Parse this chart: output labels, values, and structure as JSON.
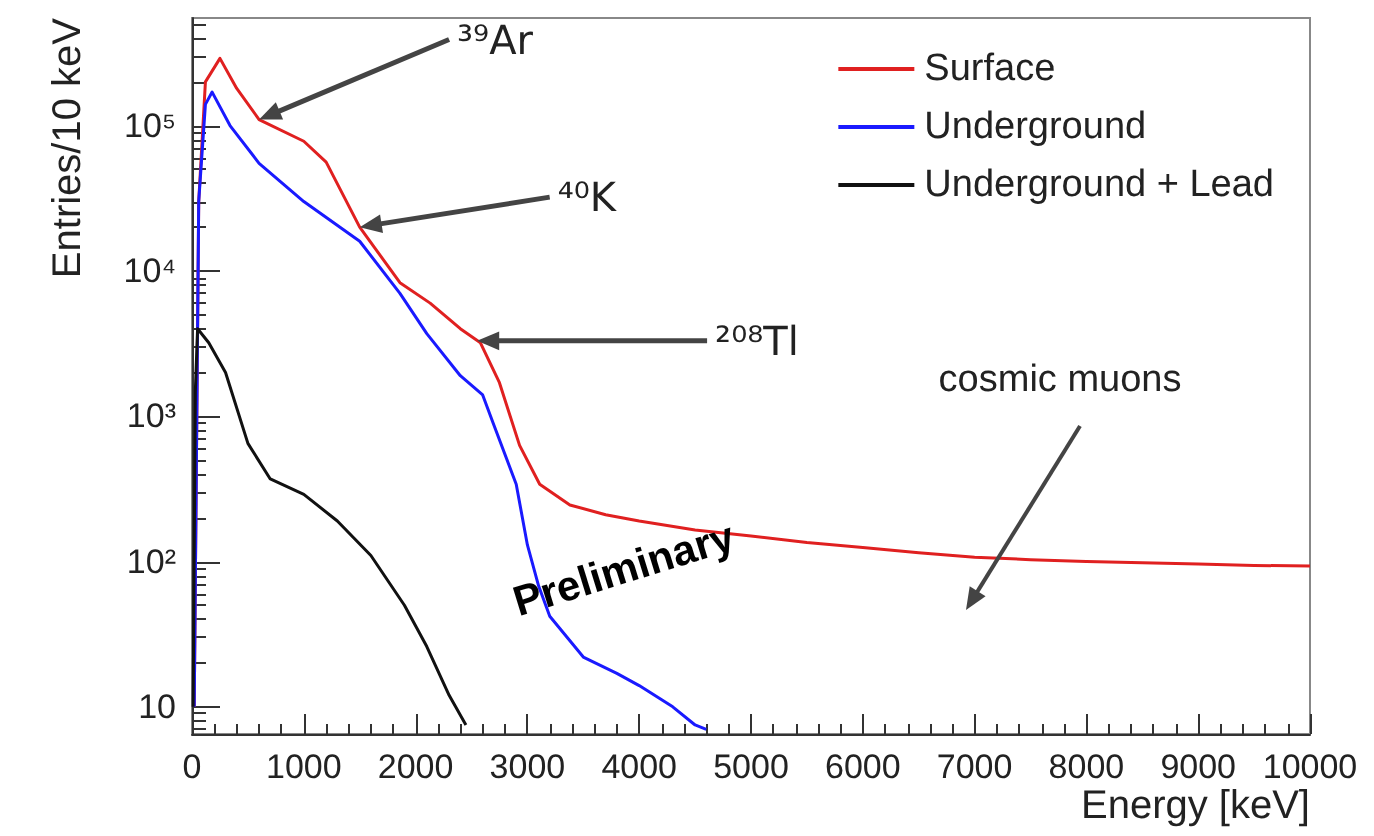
{
  "chart_data": {
    "type": "line",
    "xlabel": "Energy [keV]",
    "ylabel": "Entries/10 keV",
    "log": "y",
    "grid": false,
    "legend": "top right",
    "line_style": "solid",
    "marker": "none",
    "xlim": [
      0,
      10000
    ],
    "xticks": [
      0,
      1000,
      2000,
      3000,
      4000,
      5000,
      6000,
      7000,
      8000,
      9000,
      10000
    ],
    "ylim": [
      6.5,
      550000
    ],
    "yticks": [
      {
        "value": 10,
        "label": "10"
      },
      {
        "value": 100,
        "label": "10²"
      },
      {
        "value": 1000,
        "label": "10³"
      },
      {
        "value": 10000,
        "label": "10⁴"
      },
      {
        "value": 100000,
        "label": "10⁵"
      }
    ],
    "series": [
      {
        "name": "Surface",
        "color": "#e02020",
        "x": [
          20,
          60,
          120,
          250,
          400,
          600,
          1000,
          1200,
          1500,
          1860,
          2130,
          2400,
          2580,
          2750,
          2930,
          3110,
          3380,
          3700,
          4000,
          4500,
          5000,
          5500,
          6000,
          6500,
          7000,
          7500,
          8000,
          8500,
          9000,
          9500,
          10000
        ],
        "values": [
          10,
          30000,
          200000,
          290000,
          180000,
          110000,
          78000,
          56000,
          20000,
          8300,
          6000,
          4000,
          3200,
          1700,
          630,
          340,
          245,
          210,
          190,
          165,
          150,
          135,
          125,
          115,
          107,
          103,
          100,
          98,
          96,
          94,
          93
        ]
      },
      {
        "name": "Underground",
        "color": "#1a1aff",
        "x": [
          20,
          60,
          120,
          180,
          340,
          600,
          1000,
          1500,
          1860,
          2100,
          2400,
          2600,
          2700,
          2900,
          3000,
          3100,
          3200,
          3500,
          3800,
          4000,
          4300,
          4500,
          4600
        ],
        "values": [
          10,
          30000,
          140000,
          170000,
          100000,
          55000,
          30000,
          16000,
          7000,
          3700,
          1900,
          1400,
          870,
          340,
          130,
          68,
          42,
          22,
          17,
          14,
          10,
          7.5,
          7
        ]
      },
      {
        "name": "Underground + Lead",
        "color": "#111111",
        "x": [
          10,
          30,
          50,
          150,
          300,
          500,
          700,
          1000,
          1300,
          1600,
          1900,
          2100,
          2300,
          2450
        ],
        "values": [
          10,
          1500,
          4000,
          3200,
          2000,
          650,
          370,
          290,
          190,
          110,
          50,
          26,
          12,
          7.5
        ]
      }
    ],
    "annotations": [
      {
        "text": "³⁹Ar",
        "x": 600,
        "y": 110000
      },
      {
        "text": "⁴⁰K",
        "x": 1500,
        "y": 20000
      },
      {
        "text": "²⁰⁸Tl",
        "x": 2550,
        "y": 3300
      },
      "cosmic muons",
      "Preliminary"
    ]
  }
}
